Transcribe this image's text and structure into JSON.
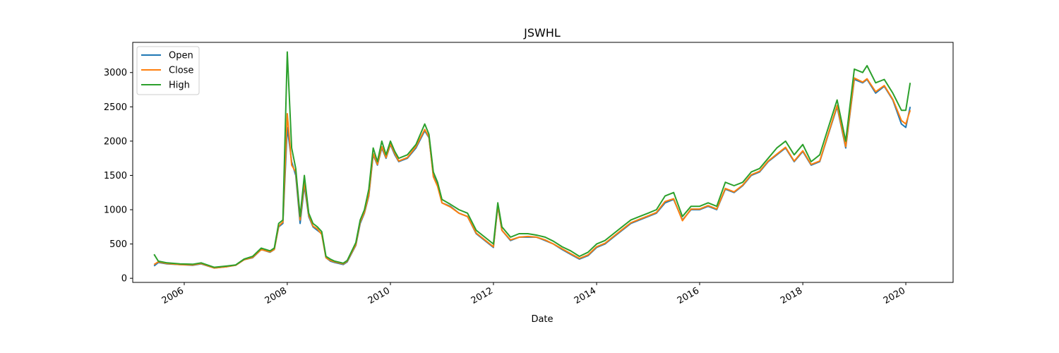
{
  "chart_data": {
    "type": "line",
    "title": "JSWHL",
    "xlabel": "Date",
    "ylabel": "",
    "x_type": "date",
    "xlim": [
      "2005-01-01",
      "2020-12-01"
    ],
    "ylim": [
      -60,
      3440
    ],
    "x_ticks": [
      "2006",
      "2008",
      "2010",
      "2012",
      "2014",
      "2016",
      "2018",
      "2020"
    ],
    "y_ticks": [
      0,
      500,
      1000,
      1500,
      2000,
      2500,
      3000
    ],
    "grid": false,
    "legend": "upper-left",
    "x": [
      "2005-06",
      "2005-07",
      "2005-09",
      "2005-12",
      "2006-03",
      "2006-05",
      "2006-08",
      "2006-11",
      "2007-01",
      "2007-03",
      "2007-05",
      "2007-07",
      "2007-09",
      "2007-10",
      "2007-11",
      "2007-12",
      "2008-01",
      "2008-02",
      "2008-03",
      "2008-04",
      "2008-05",
      "2008-06",
      "2008-07",
      "2008-08",
      "2008-09",
      "2008-10",
      "2008-11",
      "2008-12",
      "2009-02",
      "2009-03",
      "2009-05",
      "2009-06",
      "2009-07",
      "2009-08",
      "2009-09",
      "2009-10",
      "2009-11",
      "2009-12",
      "2010-01",
      "2010-02",
      "2010-03",
      "2010-05",
      "2010-07",
      "2010-09",
      "2010-10",
      "2010-11",
      "2010-12",
      "2011-01",
      "2011-03",
      "2011-05",
      "2011-07",
      "2011-09",
      "2011-11",
      "2012-01",
      "2012-02",
      "2012-03",
      "2012-05",
      "2012-07",
      "2012-09",
      "2012-11",
      "2013-01",
      "2013-03",
      "2013-05",
      "2013-07",
      "2013-09",
      "2013-11",
      "2014-01",
      "2014-03",
      "2014-05",
      "2014-07",
      "2014-09",
      "2014-11",
      "2015-01",
      "2015-03",
      "2015-05",
      "2015-07",
      "2015-09",
      "2015-11",
      "2016-01",
      "2016-03",
      "2016-05",
      "2016-07",
      "2016-09",
      "2016-11",
      "2017-01",
      "2017-03",
      "2017-05",
      "2017-07",
      "2017-09",
      "2017-11",
      "2018-01",
      "2018-03",
      "2018-05",
      "2018-07",
      "2018-09",
      "2018-11",
      "2019-01",
      "2019-03",
      "2019-04",
      "2019-06",
      "2019-08",
      "2019-10",
      "2019-12",
      "2020-01",
      "2020-02"
    ],
    "series": [
      {
        "name": "Open",
        "color": "#1f77b4",
        "values": [
          180,
          230,
          210,
          200,
          190,
          210,
          150,
          170,
          190,
          270,
          300,
          420,
          380,
          420,
          750,
          800,
          2200,
          1700,
          1500,
          800,
          1350,
          900,
          750,
          700,
          650,
          300,
          250,
          230,
          200,
          240,
          480,
          800,
          950,
          1200,
          1800,
          1650,
          1900,
          1750,
          1950,
          1800,
          1700,
          1750,
          1900,
          2150,
          2050,
          1500,
          1350,
          1100,
          1050,
          950,
          900,
          650,
          550,
          450,
          1050,
          700,
          550,
          600,
          600,
          600,
          550,
          500,
          420,
          350,
          280,
          330,
          450,
          500,
          600,
          700,
          800,
          850,
          900,
          950,
          1100,
          1150,
          850,
          1000,
          1000,
          1050,
          1000,
          1300,
          1250,
          1350,
          1500,
          1550,
          1700,
          1800,
          1900,
          1700,
          1850,
          1650,
          1700,
          2100,
          2500,
          1900,
          2900,
          2850,
          2900,
          2700,
          2800,
          2600,
          2250,
          2200,
          2500
        ]
      },
      {
        "name": "Close",
        "color": "#ff7f0e",
        "values": [
          200,
          240,
          215,
          200,
          195,
          215,
          150,
          170,
          190,
          270,
          305,
          420,
          385,
          420,
          760,
          820,
          2400,
          1650,
          1550,
          850,
          1400,
          920,
          760,
          720,
          640,
          300,
          260,
          240,
          210,
          250,
          490,
          820,
          960,
          1220,
          1820,
          1660,
          1920,
          1760,
          1960,
          1820,
          1710,
          1760,
          1920,
          2170,
          2060,
          1480,
          1340,
          1100,
          1040,
          950,
          900,
          660,
          560,
          460,
          1060,
          700,
          560,
          600,
          610,
          600,
          560,
          500,
          430,
          360,
          290,
          340,
          460,
          510,
          610,
          710,
          810,
          860,
          910,
          960,
          1120,
          1160,
          840,
          1010,
          1010,
          1060,
          1010,
          1310,
          1260,
          1360,
          1510,
          1560,
          1710,
          1810,
          1910,
          1710,
          1860,
          1660,
          1710,
          2110,
          2520,
          1920,
          2920,
          2860,
          2910,
          2720,
          2810,
          2610,
          2300,
          2250,
          2450
        ]
      },
      {
        "name": "High",
        "color": "#2ca02c",
        "values": [
          350,
          250,
          225,
          210,
          205,
          225,
          160,
          180,
          195,
          280,
          320,
          440,
          400,
          440,
          800,
          850,
          3300,
          1900,
          1600,
          900,
          1500,
          950,
          800,
          750,
          680,
          320,
          280,
          250,
          220,
          260,
          520,
          850,
          1000,
          1300,
          1900,
          1700,
          2000,
          1800,
          2000,
          1850,
          1750,
          1800,
          1950,
          2250,
          2100,
          1550,
          1400,
          1150,
          1080,
          1000,
          950,
          700,
          600,
          500,
          1100,
          750,
          600,
          650,
          650,
          630,
          600,
          540,
          460,
          400,
          320,
          380,
          500,
          550,
          650,
          750,
          850,
          900,
          950,
          1000,
          1200,
          1250,
          900,
          1050,
          1050,
          1100,
          1050,
          1400,
          1350,
          1400,
          1550,
          1600,
          1750,
          1900,
          2000,
          1800,
          1950,
          1700,
          1800,
          2200,
          2600,
          2000,
          3050,
          3000,
          3100,
          2850,
          2900,
          2700,
          2450,
          2450,
          2850
        ]
      }
    ]
  }
}
